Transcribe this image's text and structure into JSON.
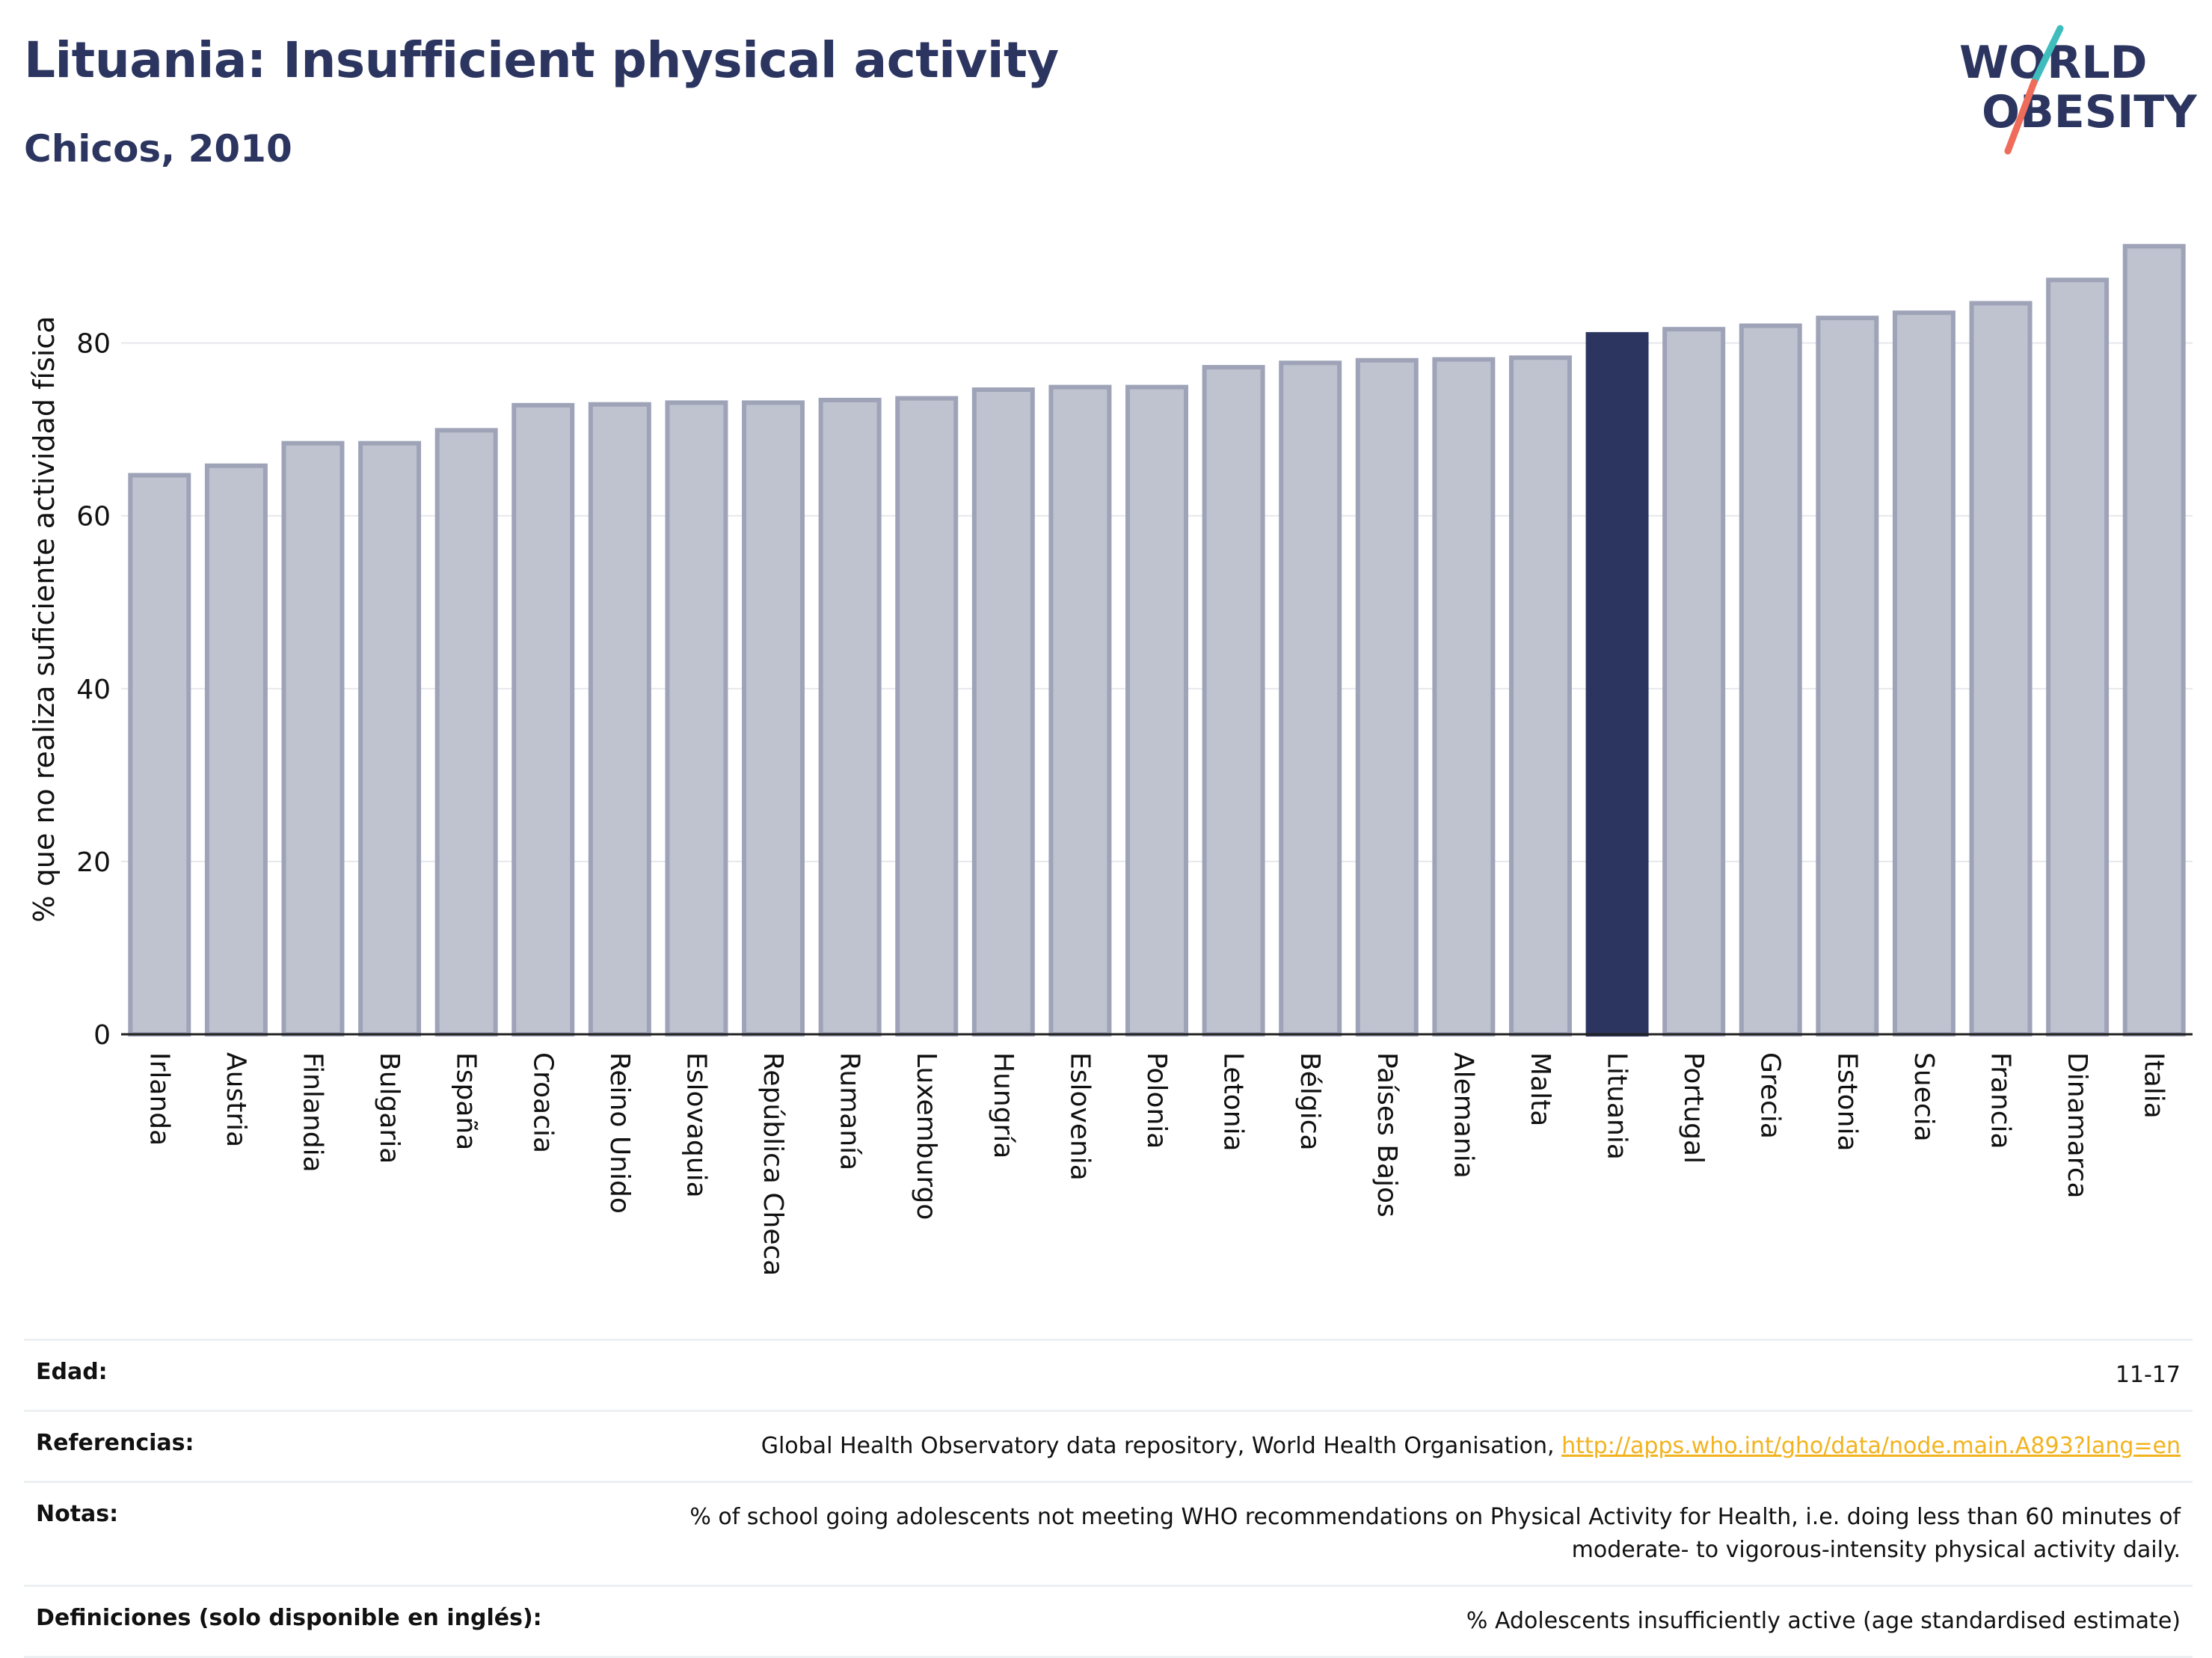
{
  "header": {
    "title": "Lituania: Insufficient physical activity",
    "subtitle": "Chicos, 2010"
  },
  "logo": {
    "line1": "WORLD",
    "line2": "OBESITY"
  },
  "colors": {
    "highlight": "#2b3560",
    "bar": "#bfc2cf",
    "bar_stroke": "#9ea3b8",
    "logo_navy": "#2b3560",
    "logo_teal": "#3fbdbd",
    "logo_coral": "#ef6c5a",
    "link": "#f2b31e"
  },
  "chart_data": {
    "type": "bar",
    "ylabel": "% que no realiza suficiente actividad física",
    "ylim": [
      0,
      92
    ],
    "yticks": [
      0,
      20,
      40,
      60,
      80
    ],
    "grid": true,
    "highlight": "Lituania",
    "categories": [
      "Irlanda",
      "Austria",
      "Finlandia",
      "Bulgaria",
      "España",
      "Croacia",
      "Reino Unido",
      "Eslovaquia",
      "República Checa",
      "Rumanía",
      "Luxemburgo",
      "Hungría",
      "Eslovenia",
      "Polonia",
      "Letonia",
      "Bélgica",
      "Países Bajos",
      "Alemania",
      "Malta",
      "Lituania",
      "Portugal",
      "Grecia",
      "Estonia",
      "Suecia",
      "Francia",
      "Dinamarca",
      "Italia"
    ],
    "values": [
      64.7,
      65.8,
      68.4,
      68.4,
      69.9,
      72.8,
      72.9,
      73.1,
      73.1,
      73.4,
      73.6,
      74.6,
      74.9,
      74.9,
      77.2,
      77.7,
      78.0,
      78.1,
      78.3,
      81.0,
      81.6,
      82.0,
      82.9,
      83.5,
      84.6,
      87.3,
      91.2
    ]
  },
  "meta": [
    {
      "label": "Edad:",
      "value": "11-17",
      "link": ""
    },
    {
      "label": "Referencias:",
      "value": "Global Health Observatory data repository, World Health Organisation,",
      "link": "http://apps.who.int/gho/data/node.main.A893?lang=en"
    },
    {
      "label": "Notas:",
      "value": "% of school going adolescents not meeting WHO recommendations on Physical Activity for Health, i.e. doing less than 60 minutes of moderate- to vigorous-intensity physical activity daily.",
      "link": ""
    },
    {
      "label": "Definiciones (solo disponible en inglés):",
      "value": "% Adolescents insufficiently active (age standardised estimate)",
      "link": ""
    }
  ]
}
